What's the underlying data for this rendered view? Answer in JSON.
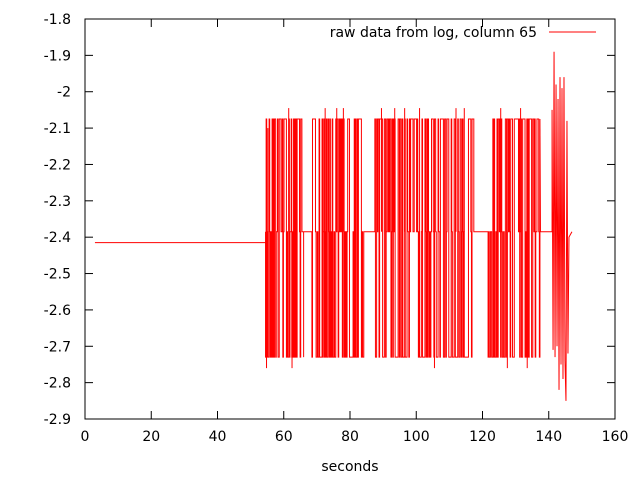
{
  "chart_data": {
    "type": "line",
    "title": "",
    "xlabel": "seconds",
    "ylabel": "",
    "xlim": [
      0,
      160
    ],
    "ylim": [
      -2.9,
      -1.8
    ],
    "x_ticks": [
      0,
      20,
      40,
      60,
      80,
      100,
      120,
      140,
      160
    ],
    "x_tick_labels": [
      "0",
      "20",
      "40",
      "60",
      "80",
      "100",
      "120",
      "140",
      "160"
    ],
    "y_ticks": [
      -2.9,
      -2.8,
      -2.7,
      -2.6,
      -2.5,
      -2.4,
      -2.3,
      -2.2,
      -2.1,
      -2.0,
      -1.9,
      -1.8
    ],
    "y_tick_labels": [
      "-2.9",
      "-2.8",
      "-2.7",
      "-2.6",
      "-2.5",
      "-2.4",
      "-2.3",
      "-2.2",
      "-2.1",
      "-2",
      "-1.9",
      "-1.8"
    ],
    "grid": false,
    "legend_position": "top-right",
    "series": [
      {
        "name": "raw data from log, column 65",
        "color": "#ff0000",
        "baseline": {
          "x": [
            3,
            54.5
          ],
          "y": [
            -2.415,
            -2.415
          ]
        },
        "tail": {
          "x": [
            137,
            147
          ],
          "y": [
            -2.385,
            -2.385
          ]
        },
        "bursts": [
          {
            "x_start": 54.5,
            "x_end": 65.5,
            "hi": -2.075,
            "lo": -2.73,
            "mid": -2.385
          },
          {
            "x_start": 68.5,
            "x_end": 84.5,
            "hi": -2.075,
            "lo": -2.73,
            "mid": -2.385
          },
          {
            "x_start": 87.5,
            "x_end": 117.5,
            "hi": -2.075,
            "lo": -2.73,
            "mid": -2.385
          },
          {
            "x_start": 121.5,
            "x_end": 137.5,
            "hi": -2.075,
            "lo": -2.73,
            "mid": -2.385
          }
        ],
        "spikes": [
          {
            "x": 54.8,
            "y": -2.76
          },
          {
            "x": 55.2,
            "y": -2.1
          },
          {
            "x": 61.5,
            "y": -2.045
          },
          {
            "x": 62.5,
            "y": -2.76
          },
          {
            "x": 66.0,
            "y": -2.73
          },
          {
            "x": 72.5,
            "y": -2.045
          },
          {
            "x": 76.0,
            "y": -2.045
          },
          {
            "x": 78.0,
            "y": -2.045
          },
          {
            "x": 89.5,
            "y": -2.045
          },
          {
            "x": 93.5,
            "y": -2.045
          },
          {
            "x": 96.5,
            "y": -2.045
          },
          {
            "x": 101.0,
            "y": -2.045
          },
          {
            "x": 105.5,
            "y": -2.76
          },
          {
            "x": 112.0,
            "y": -2.045
          },
          {
            "x": 114.5,
            "y": -2.045
          },
          {
            "x": 125.5,
            "y": -2.045
          },
          {
            "x": 127.5,
            "y": -2.76
          },
          {
            "x": 131.5,
            "y": -2.045
          },
          {
            "x": 133.5,
            "y": -2.76
          }
        ],
        "end_burst": {
          "x": [
            141.0,
            141.3,
            141.6,
            141.9,
            142.2,
            142.5,
            142.8,
            143.1,
            143.4,
            143.7,
            144.0,
            144.3,
            144.6,
            144.9,
            145.2,
            145.5,
            145.8,
            146.1
          ],
          "y": [
            -2.05,
            -2.71,
            -1.89,
            -2.73,
            -1.98,
            -2.7,
            -2.02,
            -2.82,
            -1.96,
            -2.75,
            -1.99,
            -2.79,
            -1.96,
            -2.74,
            -2.85,
            -2.08,
            -2.72,
            -2.4
          ]
        }
      }
    ]
  }
}
